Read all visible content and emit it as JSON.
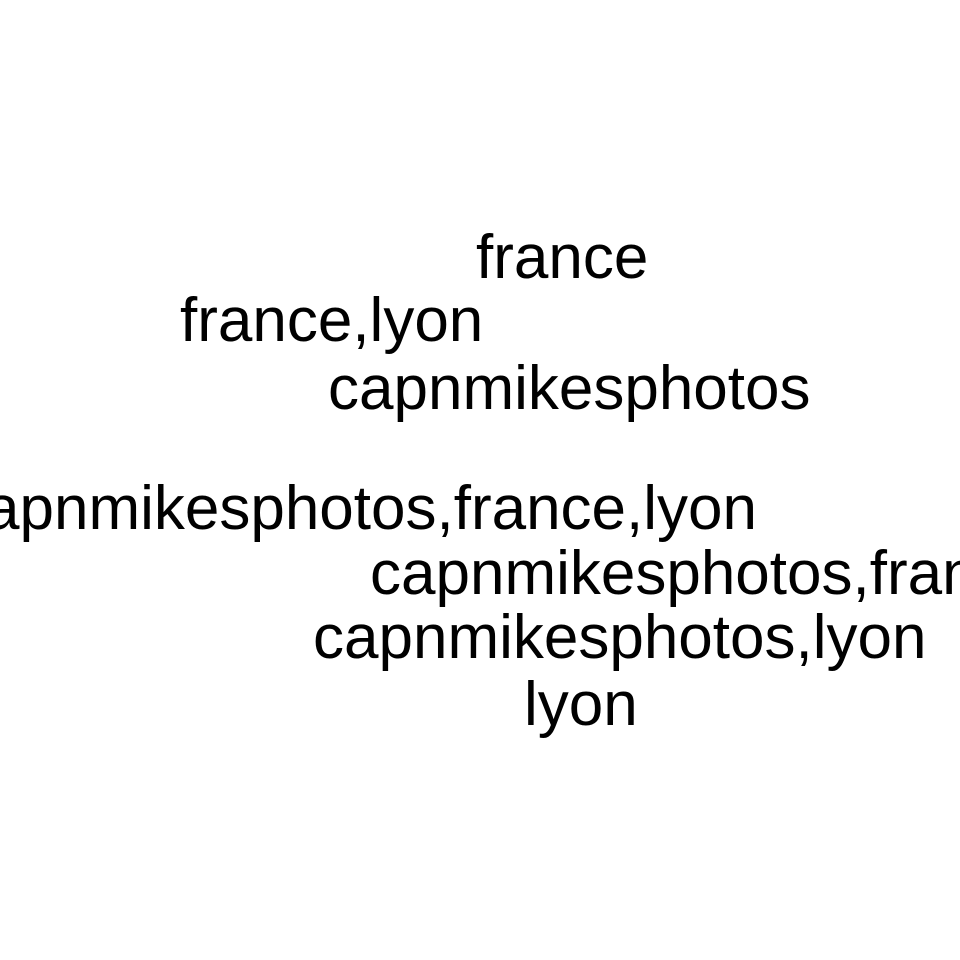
{
  "tags": [
    "france",
    "france,lyon",
    "capnmikesphotos",
    "capnmikesphotos,france,lyon",
    "capnmikesphotos,france",
    "capnmikesphotos,lyon",
    "lyon"
  ],
  "colors": {
    "background": "#ffffff",
    "text": "#000000"
  }
}
